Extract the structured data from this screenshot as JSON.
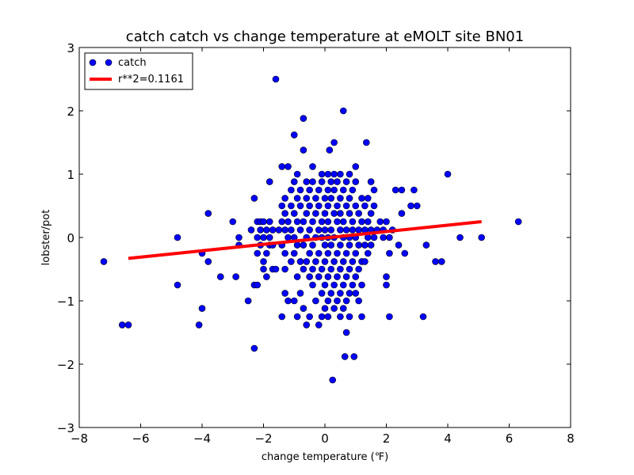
{
  "chart_data": {
    "type": "scatter",
    "title": "catch catch vs change temperature at eMOLT site BN01",
    "xlabel": "change temperature (℉)",
    "ylabel": "lobster/pot",
    "xlim": [
      -8,
      8
    ],
    "ylim": [
      -3,
      3
    ],
    "xticks": [
      -8,
      -6,
      -4,
      -2,
      0,
      2,
      4,
      6,
      8
    ],
    "yticks": [
      -3,
      -2,
      -1,
      0,
      1,
      2,
      3
    ],
    "xtick_labels": [
      "−8",
      "−6",
      "−4",
      "−2",
      "0",
      "2",
      "4",
      "6",
      "8"
    ],
    "ytick_labels": [
      "−3",
      "−2",
      "−1",
      "0",
      "1",
      "2",
      "3"
    ],
    "grid": false,
    "legend_position": "top-left",
    "colors": {
      "points": "#0000ff",
      "fit_line": "#ff0000",
      "point_edge": "#000000"
    },
    "series": [
      {
        "name": "catch",
        "kind": "points",
        "points": [
          [
            -7.2,
            -0.38
          ],
          [
            -6.6,
            -1.38
          ],
          [
            -6.4,
            -1.38
          ],
          [
            -4.8,
            0.0
          ],
          [
            -4.8,
            -0.75
          ],
          [
            -4.1,
            -1.38
          ],
          [
            -4.0,
            -1.12
          ],
          [
            -4.0,
            -0.25
          ],
          [
            -3.8,
            -0.38
          ],
          [
            -3.8,
            0.38
          ],
          [
            -3.4,
            -0.62
          ],
          [
            -3.0,
            0.25
          ],
          [
            -2.9,
            -0.62
          ],
          [
            -2.8,
            0.0
          ],
          [
            -2.8,
            -0.12
          ],
          [
            -2.5,
            -1.0
          ],
          [
            -2.4,
            0.12
          ],
          [
            -2.3,
            0.62
          ],
          [
            -2.3,
            -0.75
          ],
          [
            -2.3,
            -1.75
          ],
          [
            -2.2,
            0.25
          ],
          [
            -2.2,
            0.0
          ],
          [
            -2.2,
            -0.25
          ],
          [
            -2.2,
            -0.75
          ],
          [
            -2.1,
            0.25
          ],
          [
            -2.1,
            0.12
          ],
          [
            -2.1,
            -0.12
          ],
          [
            -2.0,
            0.25
          ],
          [
            -2.0,
            0.0
          ],
          [
            -2.0,
            -0.38
          ],
          [
            -2.0,
            -0.5
          ],
          [
            -1.9,
            0.12
          ],
          [
            -1.9,
            -0.25
          ],
          [
            -1.9,
            -0.62
          ],
          [
            -1.8,
            0.88
          ],
          [
            -1.8,
            0.25
          ],
          [
            -1.8,
            0.0
          ],
          [
            -1.8,
            -0.12
          ],
          [
            -1.7,
            0.12
          ],
          [
            -1.7,
            -0.12
          ],
          [
            -1.7,
            -0.5
          ],
          [
            -1.6,
            2.5
          ],
          [
            -1.6,
            -0.5
          ],
          [
            -1.5,
            0.12
          ],
          [
            -1.4,
            1.12
          ],
          [
            -1.4,
            0.5
          ],
          [
            -1.4,
            0.25
          ],
          [
            -1.4,
            -0.12
          ],
          [
            -1.4,
            -1.25
          ],
          [
            -1.3,
            0.62
          ],
          [
            -1.3,
            0.38
          ],
          [
            -1.3,
            0.12
          ],
          [
            -1.3,
            -0.25
          ],
          [
            -1.3,
            -0.5
          ],
          [
            -1.3,
            -0.88
          ],
          [
            -1.2,
            1.12
          ],
          [
            -1.2,
            0.25
          ],
          [
            -1.2,
            0.0
          ],
          [
            -1.2,
            -1.0
          ],
          [
            -1.1,
            0.75
          ],
          [
            -1.1,
            0.5
          ],
          [
            -1.1,
            0.12
          ],
          [
            -1.1,
            -0.38
          ],
          [
            -1.0,
            1.62
          ],
          [
            -1.0,
            0.88
          ],
          [
            -1.0,
            0.38
          ],
          [
            -1.0,
            0.0
          ],
          [
            -1.0,
            -0.25
          ],
          [
            -1.0,
            -1.0
          ],
          [
            -0.9,
            1.0
          ],
          [
            -0.9,
            0.62
          ],
          [
            -0.9,
            0.25
          ],
          [
            -0.9,
            -0.12
          ],
          [
            -0.9,
            -0.62
          ],
          [
            -0.9,
            -1.25
          ],
          [
            -0.8,
            0.75
          ],
          [
            -0.8,
            0.5
          ],
          [
            -0.8,
            0.12
          ],
          [
            -0.8,
            -0.38
          ],
          [
            -0.8,
            -0.88
          ],
          [
            -0.7,
            1.88
          ],
          [
            -0.7,
            1.38
          ],
          [
            -0.7,
            0.25
          ],
          [
            -0.7,
            -0.12
          ],
          [
            -0.7,
            -0.5
          ],
          [
            -0.7,
            -1.12
          ],
          [
            -0.6,
            0.88
          ],
          [
            -0.6,
            0.62
          ],
          [
            -0.6,
            0.38
          ],
          [
            -0.6,
            0.0
          ],
          [
            -0.6,
            -0.38
          ],
          [
            -0.6,
            -1.38
          ],
          [
            -0.5,
            0.75
          ],
          [
            -0.5,
            0.5
          ],
          [
            -0.5,
            0.12
          ],
          [
            -0.5,
            -0.25
          ],
          [
            -0.5,
            -0.62
          ],
          [
            -0.5,
            -1.25
          ],
          [
            -0.4,
            1.12
          ],
          [
            -0.4,
            0.88
          ],
          [
            -0.4,
            0.25
          ],
          [
            -0.4,
            -0.12
          ],
          [
            -0.4,
            -0.5
          ],
          [
            -0.4,
            -0.75
          ],
          [
            -0.3,
            0.62
          ],
          [
            -0.3,
            0.38
          ],
          [
            -0.3,
            0.0
          ],
          [
            -0.3,
            -0.38
          ],
          [
            -0.3,
            -1.0
          ],
          [
            -0.2,
            0.75
          ],
          [
            -0.2,
            0.5
          ],
          [
            -0.2,
            0.12
          ],
          [
            -0.2,
            -0.25
          ],
          [
            -0.2,
            -0.62
          ],
          [
            -0.2,
            -1.38
          ],
          [
            -0.1,
            1.0
          ],
          [
            -0.1,
            0.88
          ],
          [
            -0.1,
            0.25
          ],
          [
            -0.1,
            0.0
          ],
          [
            -0.1,
            -0.5
          ],
          [
            -0.1,
            -0.88
          ],
          [
            -0.1,
            -1.25
          ],
          [
            0.0,
            0.62
          ],
          [
            0.0,
            0.38
          ],
          [
            0.0,
            0.12
          ],
          [
            0.0,
            -0.12
          ],
          [
            0.0,
            -0.38
          ],
          [
            0.0,
            -0.75
          ],
          [
            0.0,
            -1.12
          ],
          [
            0.1,
            1.0
          ],
          [
            0.1,
            0.75
          ],
          [
            0.1,
            0.5
          ],
          [
            0.1,
            0.25
          ],
          [
            0.1,
            0.0
          ],
          [
            0.1,
            -0.25
          ],
          [
            0.1,
            -0.62
          ],
          [
            0.1,
            -1.0
          ],
          [
            0.1,
            -1.25
          ],
          [
            0.15,
            1.38
          ],
          [
            0.2,
            0.88
          ],
          [
            0.2,
            0.62
          ],
          [
            0.2,
            0.12
          ],
          [
            0.2,
            -0.12
          ],
          [
            0.2,
            -0.5
          ],
          [
            0.2,
            -0.88
          ],
          [
            0.25,
            -2.25
          ],
          [
            0.3,
            1.5
          ],
          [
            0.3,
            1.0
          ],
          [
            0.3,
            0.75
          ],
          [
            0.3,
            0.38
          ],
          [
            0.3,
            0.0
          ],
          [
            0.3,
            -0.38
          ],
          [
            0.3,
            -0.75
          ],
          [
            0.3,
            -1.12
          ],
          [
            0.4,
            0.88
          ],
          [
            0.4,
            0.5
          ],
          [
            0.4,
            0.25
          ],
          [
            0.4,
            -0.25
          ],
          [
            0.4,
            -0.62
          ],
          [
            0.4,
            -1.0
          ],
          [
            0.5,
            1.0
          ],
          [
            0.5,
            0.62
          ],
          [
            0.5,
            0.38
          ],
          [
            0.5,
            0.12
          ],
          [
            0.5,
            -0.12
          ],
          [
            0.5,
            -0.5
          ],
          [
            0.5,
            -0.88
          ],
          [
            0.5,
            -1.25
          ],
          [
            0.6,
            2.0
          ],
          [
            0.6,
            0.75
          ],
          [
            0.6,
            0.25
          ],
          [
            0.6,
            0.0
          ],
          [
            0.6,
            -0.38
          ],
          [
            0.6,
            -0.75
          ],
          [
            0.6,
            -1.12
          ],
          [
            0.65,
            -1.88
          ],
          [
            0.7,
            0.88
          ],
          [
            0.7,
            0.5
          ],
          [
            0.7,
            0.12
          ],
          [
            0.7,
            -0.25
          ],
          [
            0.7,
            -0.62
          ],
          [
            0.7,
            -1.0
          ],
          [
            0.7,
            -1.5
          ],
          [
            0.8,
            1.0
          ],
          [
            0.8,
            0.62
          ],
          [
            0.8,
            0.38
          ],
          [
            0.8,
            0.0
          ],
          [
            0.8,
            -0.12
          ],
          [
            0.8,
            -0.5
          ],
          [
            0.8,
            -0.88
          ],
          [
            0.8,
            -1.25
          ],
          [
            0.9,
            0.75
          ],
          [
            0.9,
            0.25
          ],
          [
            0.9,
            0.12
          ],
          [
            0.9,
            -0.38
          ],
          [
            0.9,
            -0.75
          ],
          [
            0.95,
            -1.88
          ],
          [
            1.0,
            1.12
          ],
          [
            1.0,
            0.88
          ],
          [
            1.0,
            0.5
          ],
          [
            1.0,
            0.0
          ],
          [
            1.0,
            -0.25
          ],
          [
            1.0,
            -0.62
          ],
          [
            1.0,
            -0.88
          ],
          [
            1.1,
            0.38
          ],
          [
            1.1,
            0.12
          ],
          [
            1.1,
            -0.12
          ],
          [
            1.1,
            -0.5
          ],
          [
            1.1,
            -1.0
          ],
          [
            1.2,
            0.62
          ],
          [
            1.2,
            0.25
          ],
          [
            1.2,
            -0.38
          ],
          [
            1.2,
            -0.75
          ],
          [
            1.2,
            -1.25
          ],
          [
            1.3,
            0.5
          ],
          [
            1.3,
            0.12
          ],
          [
            1.3,
            -0.12
          ],
          [
            1.3,
            -0.38
          ],
          [
            1.35,
            1.5
          ],
          [
            1.4,
            0.62
          ],
          [
            1.4,
            0.25
          ],
          [
            1.4,
            0.0
          ],
          [
            1.4,
            -0.25
          ],
          [
            1.5,
            0.88
          ],
          [
            1.5,
            0.38
          ],
          [
            1.5,
            0.12
          ],
          [
            1.5,
            -0.12
          ],
          [
            1.6,
            0.75
          ],
          [
            1.6,
            0.5
          ],
          [
            1.6,
            0.0
          ],
          [
            1.7,
            0.12
          ],
          [
            1.8,
            0.25
          ],
          [
            1.9,
            0.12
          ],
          [
            1.9,
            0.0
          ],
          [
            2.0,
            0.25
          ],
          [
            2.0,
            -0.62
          ],
          [
            2.0,
            -0.75
          ],
          [
            2.1,
            0.0
          ],
          [
            2.1,
            -0.25
          ],
          [
            2.1,
            -1.25
          ],
          [
            2.2,
            0.12
          ],
          [
            2.3,
            0.75
          ],
          [
            2.4,
            -0.12
          ],
          [
            2.5,
            0.75
          ],
          [
            2.5,
            0.38
          ],
          [
            2.6,
            -0.25
          ],
          [
            2.8,
            0.5
          ],
          [
            2.9,
            0.75
          ],
          [
            3.0,
            0.5
          ],
          [
            3.2,
            -1.25
          ],
          [
            3.3,
            -0.12
          ],
          [
            3.6,
            -0.38
          ],
          [
            3.8,
            -0.38
          ],
          [
            4.0,
            1.0
          ],
          [
            4.4,
            0.0
          ],
          [
            5.1,
            0.0
          ],
          [
            6.3,
            0.25
          ]
        ]
      },
      {
        "name": "r**2=0.1161",
        "kind": "line",
        "x": [
          -6.4,
          5.1
        ],
        "y": [
          -0.33,
          0.25
        ]
      }
    ]
  }
}
